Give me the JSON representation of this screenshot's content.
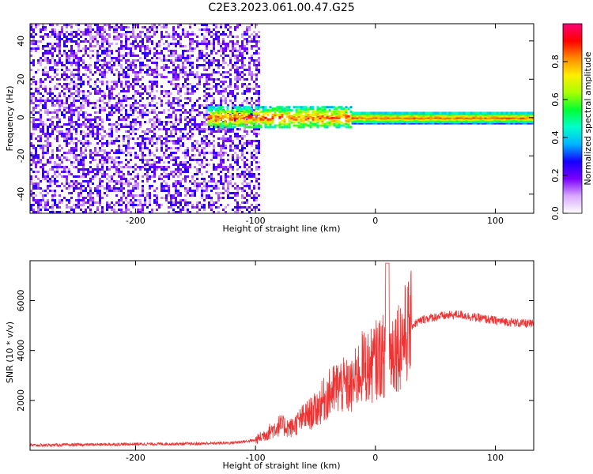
{
  "title": "C2E3.2023.061.00.47.G25",
  "chart_data": [
    {
      "type": "heatmap",
      "xlabel": "Height of straight line (km)",
      "ylabel": "Frequency (Hz)",
      "xlim": [
        -288,
        132
      ],
      "ylim": [
        -50,
        49
      ],
      "xticks": [
        -200,
        -100,
        0,
        100
      ],
      "xtick_labels": [
        "-200",
        "-100",
        "0",
        "100"
      ],
      "yticks": [
        -40,
        -20,
        0,
        20,
        40
      ],
      "ytick_labels": [
        "-40",
        "-20",
        "0",
        "20",
        "40"
      ],
      "colorbar": {
        "label": "Normalized spectral amplitude",
        "range": [
          0,
          1
        ],
        "ticks": [
          0.0,
          0.2,
          0.4,
          0.6,
          0.8
        ],
        "tick_labels": [
          "0.0",
          "0.2",
          "0.4",
          "0.6",
          "0.8"
        ],
        "colormap": [
          "#ffffff",
          "#d9a8ff",
          "#7a00ff",
          "#1400ff",
          "#00b4ff",
          "#00ffcc",
          "#00ff33",
          "#a8ff00",
          "#ffee00",
          "#ff8a00",
          "#ff0000",
          "#ff0077"
        ]
      },
      "regions": [
        {
          "x": [
            -288,
            -97
          ],
          "f": [
            -50,
            49
          ],
          "level": "0.1-0.25 (scattered noise)"
        },
        {
          "x": [
            -140,
            -20
          ],
          "f": [
            -5,
            6
          ],
          "level": "0.3-0.9 (patchy band)"
        },
        {
          "x": [
            -20,
            132
          ],
          "f": [
            -3,
            3
          ],
          "level": "0.3-0.9 (continuous band near 0 Hz)"
        }
      ]
    },
    {
      "type": "line",
      "xlabel": "Height of straight line (km)",
      "ylabel": "SNR (10 * v/v)",
      "xlim": [
        -288,
        132
      ],
      "ylim": [
        0,
        7600
      ],
      "xticks": [
        -200,
        -100,
        0,
        100
      ],
      "xtick_labels": [
        "-200",
        "-100",
        "0",
        "100"
      ],
      "yticks": [
        2000,
        4000,
        6000
      ],
      "ytick_labels": [
        "2000",
        "4000",
        "6000"
      ],
      "color": "#ee3333",
      "series": [
        {
          "x": [
            -288,
            -250,
            -200,
            -150,
            -120,
            -100,
            -90,
            -80,
            -70,
            -60,
            -50,
            -40,
            -30,
            -20,
            -15,
            -10,
            -5,
            0,
            5,
            10,
            15,
            20,
            30,
            40,
            50,
            60,
            70,
            80,
            100,
            120,
            132
          ],
          "y": [
            200,
            220,
            250,
            260,
            300,
            400,
            700,
            1000,
            900,
            1300,
            1600,
            2200,
            2600,
            2500,
            3000,
            3400,
            3300,
            3600,
            3800,
            3700,
            4100,
            4300,
            5000,
            5250,
            5350,
            5400,
            5450,
            5350,
            5200,
            5100,
            5050
          ]
        }
      ]
    }
  ]
}
